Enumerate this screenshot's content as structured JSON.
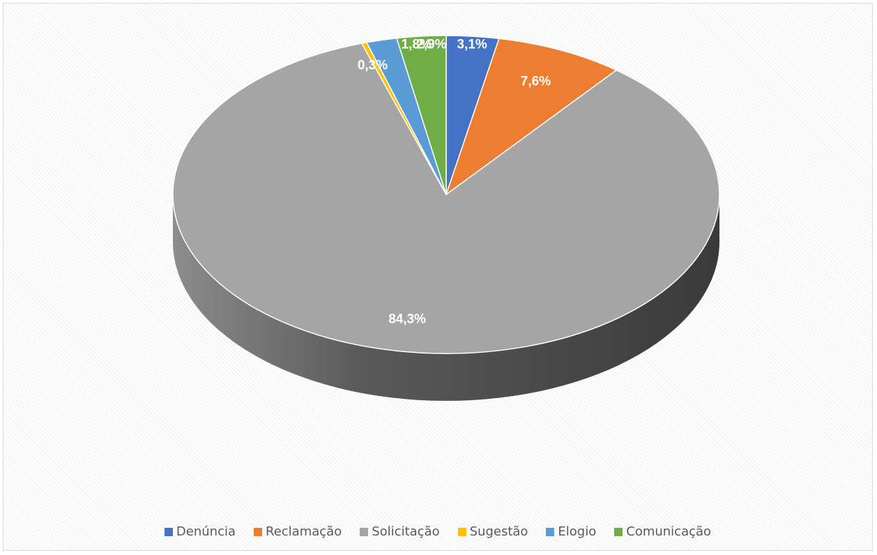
{
  "chart_data": {
    "type": "pie",
    "style": "3d",
    "categories": [
      "Denúncia",
      "Reclamação",
      "Solicitação",
      "Sugestão",
      "Elogio",
      "Comunicação"
    ],
    "values": [
      3.1,
      7.6,
      84.3,
      0.3,
      1.8,
      2.9
    ],
    "data_labels": [
      "3,1%",
      "7,6%",
      "84,3%",
      "0,3%",
      "1,8%",
      "2,9%"
    ],
    "colors": [
      "#4472c4",
      "#ed7d31",
      "#a5a5a5",
      "#ffc000",
      "#5b9bd5",
      "#70ad47"
    ],
    "legend_position": "bottom",
    "title": ""
  }
}
